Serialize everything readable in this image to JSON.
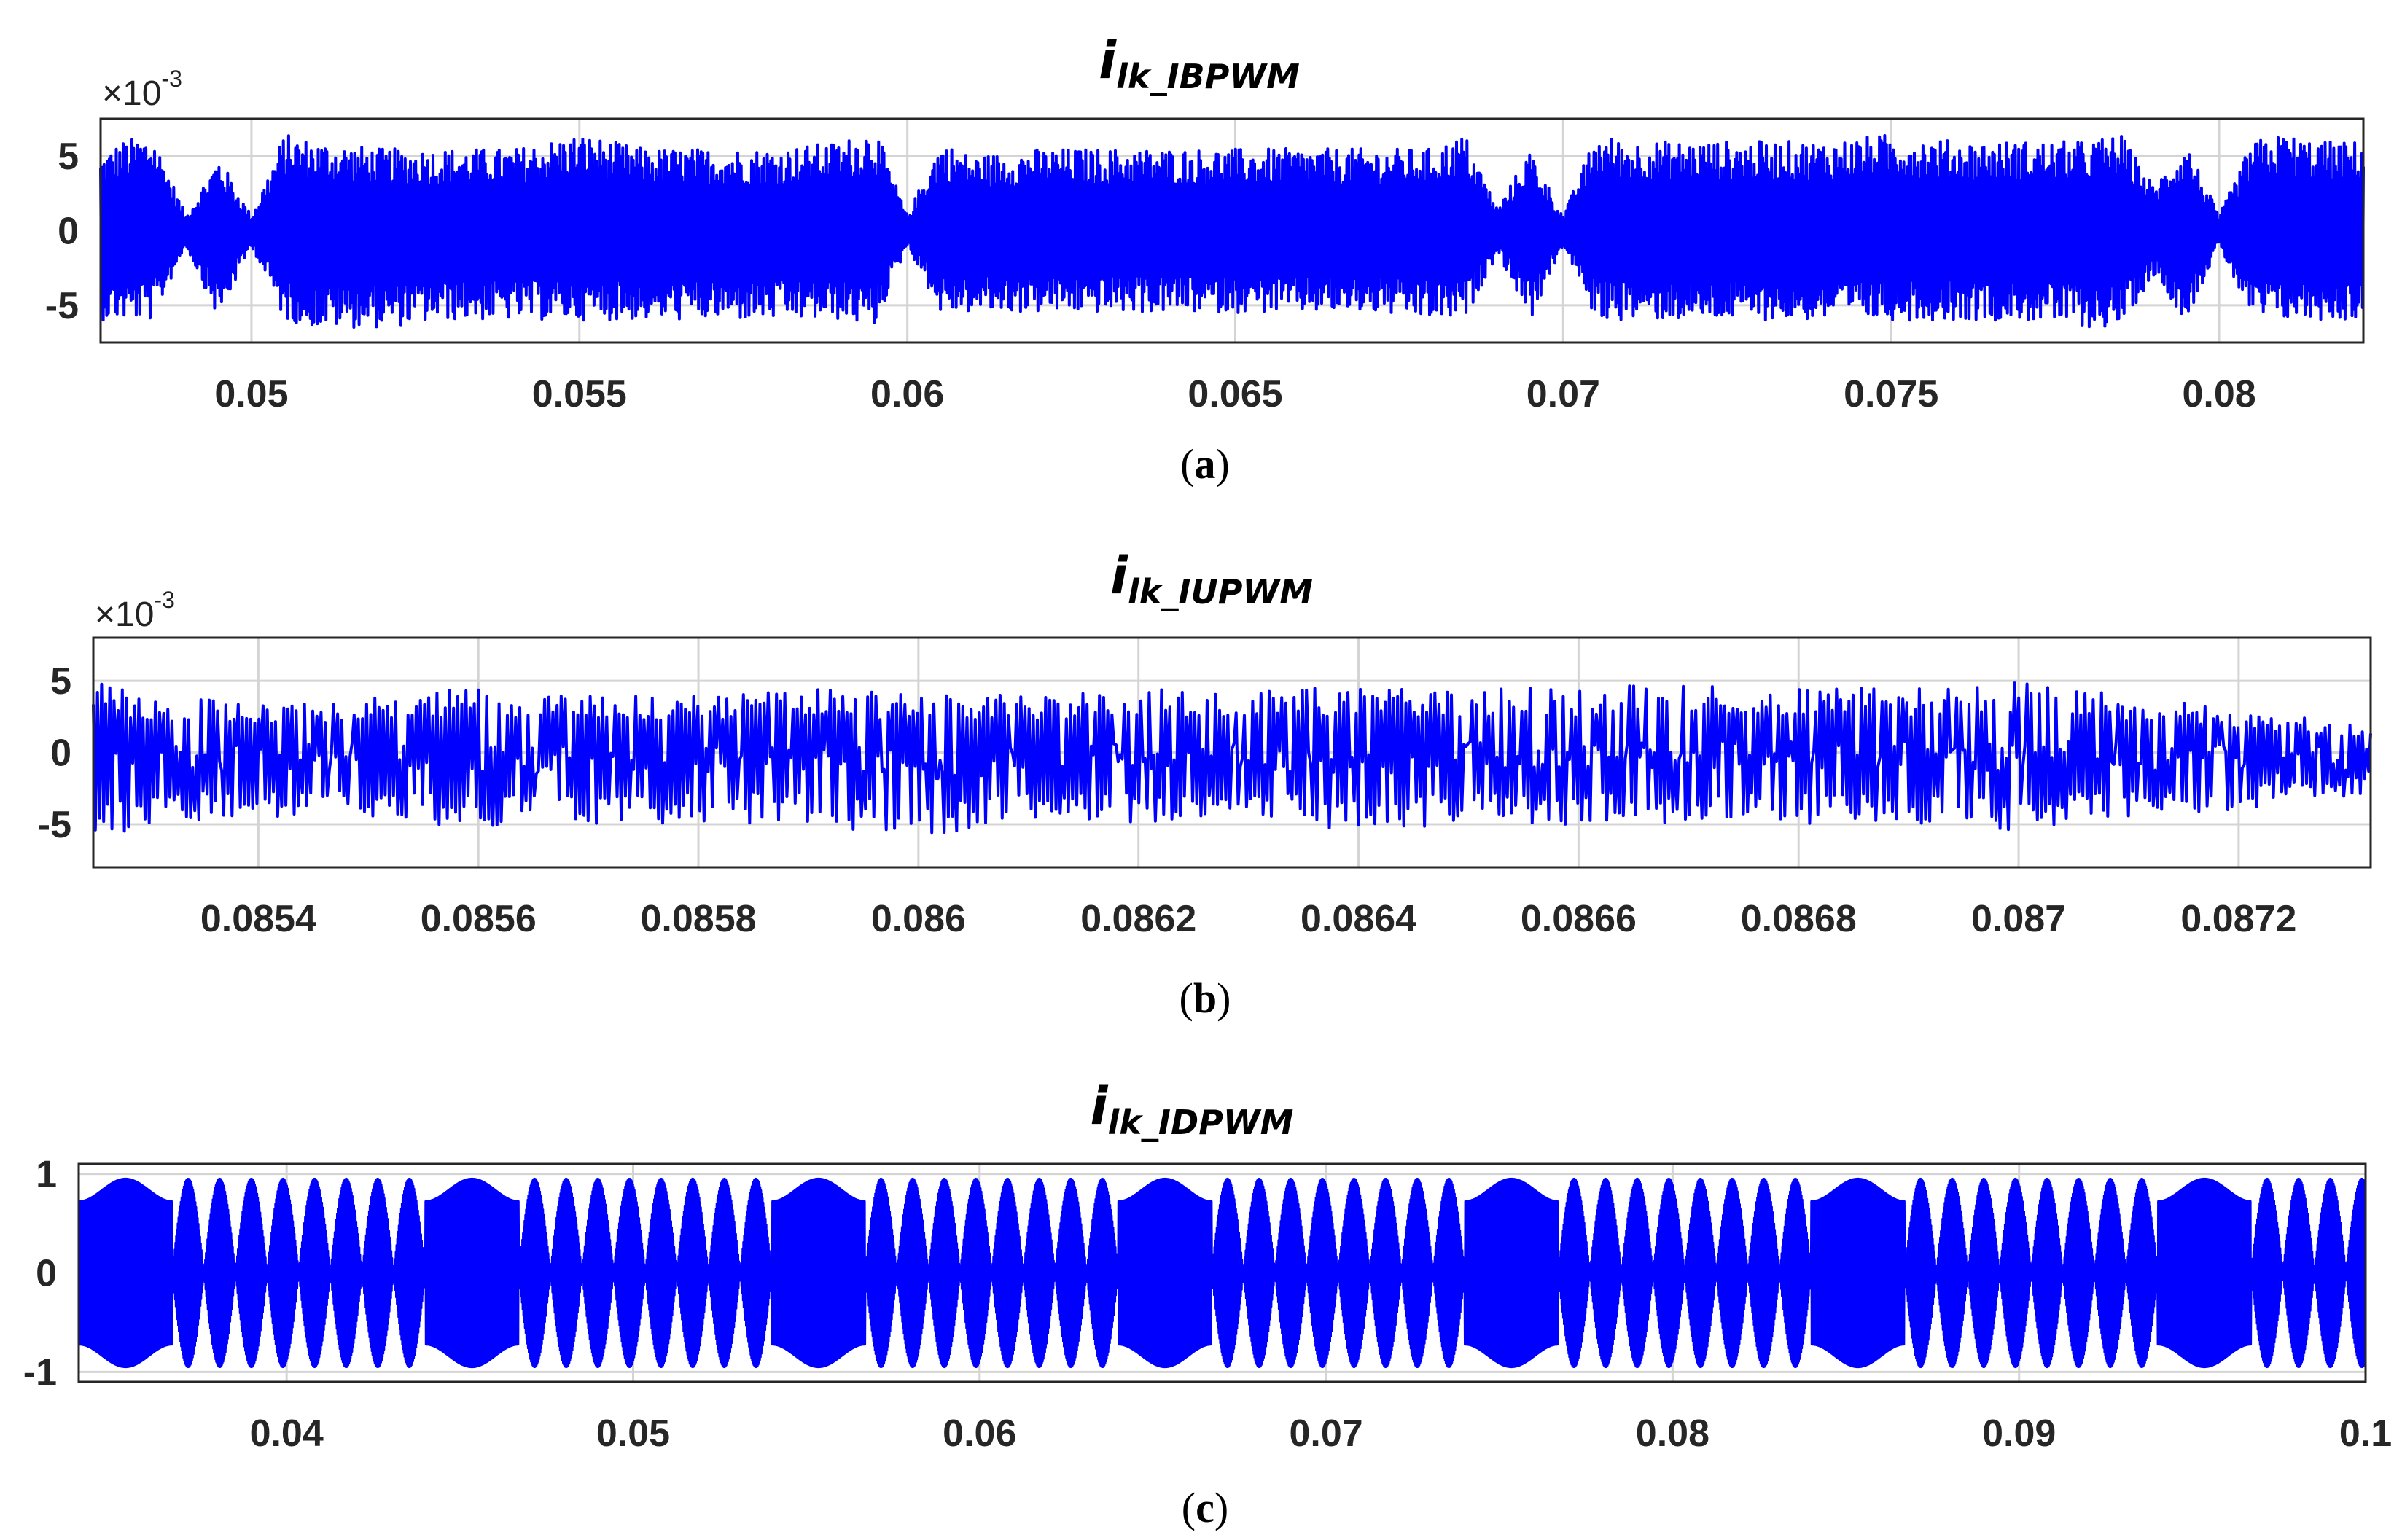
{
  "chart_data": [
    {
      "type": "line",
      "panel_label": "a",
      "title_main": "i",
      "title_sub": "lk_IBPWM",
      "exponent_label": "×10",
      "exponent_power": "-3",
      "xlim": [
        0.0477,
        0.0822
      ],
      "ylim": [
        -7.5,
        7.5
      ],
      "xticks": [
        0.05,
        0.055,
        0.06,
        0.065,
        0.07,
        0.075,
        0.08
      ],
      "xtick_labels": [
        "0.05",
        "0.055",
        "0.06",
        "0.065",
        "0.07",
        "0.075",
        "0.08"
      ],
      "yticks": [
        5,
        0,
        -5
      ],
      "ytick_labels": [
        "5",
        "0",
        "-5"
      ],
      "grid": true,
      "series": [
        {
          "color": "#0000ff",
          "description_of_envelope": "dense switching ripple",
          "x": [
            0.0477,
            0.048,
            0.0485,
            0.049,
            0.0495,
            0.05,
            0.0505,
            0.051,
            0.052,
            0.053,
            0.054,
            0.055,
            0.056,
            0.057,
            0.058,
            0.059,
            0.0595,
            0.06,
            0.0605,
            0.061,
            0.062,
            0.063,
            0.064,
            0.065,
            0.066,
            0.067,
            0.068,
            0.0685,
            0.069,
            0.0695,
            0.07,
            0.0705,
            0.071,
            0.072,
            0.073,
            0.074,
            0.075,
            0.076,
            0.077,
            0.078,
            0.0785,
            0.079,
            0.0795,
            0.08,
            0.0805,
            0.081,
            0.0815,
            0.082
          ],
          "upper": [
            5.0,
            6.0,
            6.5,
            1.0,
            5.0,
            1.0,
            6.5,
            6.0,
            5.5,
            5.5,
            5.5,
            6.5,
            5.5,
            5.5,
            5.5,
            6.0,
            7.0,
            1.0,
            6.0,
            5.0,
            5.5,
            5.5,
            5.5,
            5.5,
            5.5,
            5.5,
            5.5,
            6.5,
            1.5,
            5.5,
            1.0,
            6.5,
            6.0,
            6.0,
            6.0,
            6.0,
            6.5,
            6.0,
            6.0,
            6.0,
            6.5,
            3.0,
            6.0,
            1.0,
            6.0,
            6.5,
            6.0,
            6.0
          ],
          "lower": [
            -6.0,
            -6.0,
            -6.0,
            -1.0,
            -6.0,
            -1.0,
            -6.0,
            -6.5,
            -6.5,
            -6.0,
            -6.0,
            -6.0,
            -6.0,
            -6.0,
            -6.0,
            -6.0,
            -6.5,
            -1.0,
            -5.5,
            -5.5,
            -5.5,
            -5.5,
            -5.5,
            -5.5,
            -5.5,
            -5.5,
            -6.0,
            -6.0,
            -1.5,
            -6.0,
            -1.0,
            -6.0,
            -6.0,
            -6.0,
            -6.0,
            -6.0,
            -6.0,
            -6.0,
            -6.0,
            -6.5,
            -6.5,
            -3.0,
            -6.0,
            -1.0,
            -6.0,
            -6.0,
            -6.0,
            -6.0
          ]
        }
      ]
    },
    {
      "type": "line",
      "panel_label": "b",
      "title_main": "i",
      "title_sub": "lk_IUPWM",
      "exponent_label": "×10",
      "exponent_power": "-3",
      "xlim": [
        0.08525,
        0.08732
      ],
      "ylim": [
        -8.0,
        8.0
      ],
      "xticks": [
        0.0854,
        0.0856,
        0.0858,
        0.086,
        0.0862,
        0.0864,
        0.0866,
        0.0868,
        0.087,
        0.0872
      ],
      "xtick_labels": [
        "0.0854",
        "0.0856",
        "0.0858",
        "0.086",
        "0.0862",
        "0.0864",
        "0.0866",
        "0.0868",
        "0.087",
        "0.0872"
      ],
      "yticks": [
        5,
        0,
        -5
      ],
      "ytick_labels": [
        "5",
        "0",
        "-5"
      ],
      "grid": true,
      "series": [
        {
          "color": "#0000ff",
          "x": [
            0.08525,
            0.0853,
            0.0854,
            0.0855,
            0.0856,
            0.0857,
            0.0858,
            0.0859,
            0.086,
            0.0861,
            0.0862,
            0.0863,
            0.0864,
            0.0865,
            0.0866,
            0.0867,
            0.0868,
            0.0869,
            0.087,
            0.0871,
            0.0872,
            0.0873
          ],
          "upper": [
            5.0,
            4.0,
            3.5,
            4.0,
            4.5,
            4.0,
            4.0,
            4.5,
            4.0,
            4.0,
            4.5,
            4.5,
            4.5,
            4.5,
            4.5,
            5.0,
            4.5,
            4.5,
            5.0,
            4.0,
            3.0,
            2.0
          ],
          "lower": [
            -7.0,
            -5.0,
            -4.5,
            -4.5,
            -5.5,
            -5.0,
            -5.0,
            -5.0,
            -6.0,
            -5.0,
            -5.0,
            -5.0,
            -5.5,
            -5.0,
            -5.0,
            -5.0,
            -5.0,
            -5.0,
            -5.5,
            -4.5,
            -4.0,
            -3.0
          ]
        }
      ]
    },
    {
      "type": "line",
      "panel_label": "c",
      "title_main": "i",
      "title_sub": "lk_IDPWM",
      "xlim": [
        0.034,
        0.1
      ],
      "ylim": [
        -1.1,
        1.1
      ],
      "xticks": [
        0.04,
        0.05,
        0.06,
        0.07,
        0.08,
        0.09,
        0.1
      ],
      "xtick_labels": [
        "0.04",
        "0.05",
        "0.06",
        "0.07",
        "0.08",
        "0.09",
        "0.1"
      ],
      "yticks": [
        1,
        0,
        -1
      ],
      "ytick_labels": [
        "1",
        "0",
        "-1"
      ],
      "grid": true,
      "series": [
        {
          "color": "#0000ff",
          "period": 0.01,
          "first_dense_block_start": 0.034,
          "dense_block_length": 0.0027,
          "beat_blocks_per_period": 1,
          "amplitude": 0.95
        }
      ]
    }
  ],
  "panels": [
    {
      "caption_open": "(",
      "caption_letter": "a",
      "caption_close": ")"
    },
    {
      "caption_open": "(",
      "caption_letter": "b",
      "caption_close": ")"
    },
    {
      "caption_open": "(",
      "caption_letter": "c",
      "caption_close": ")"
    }
  ]
}
